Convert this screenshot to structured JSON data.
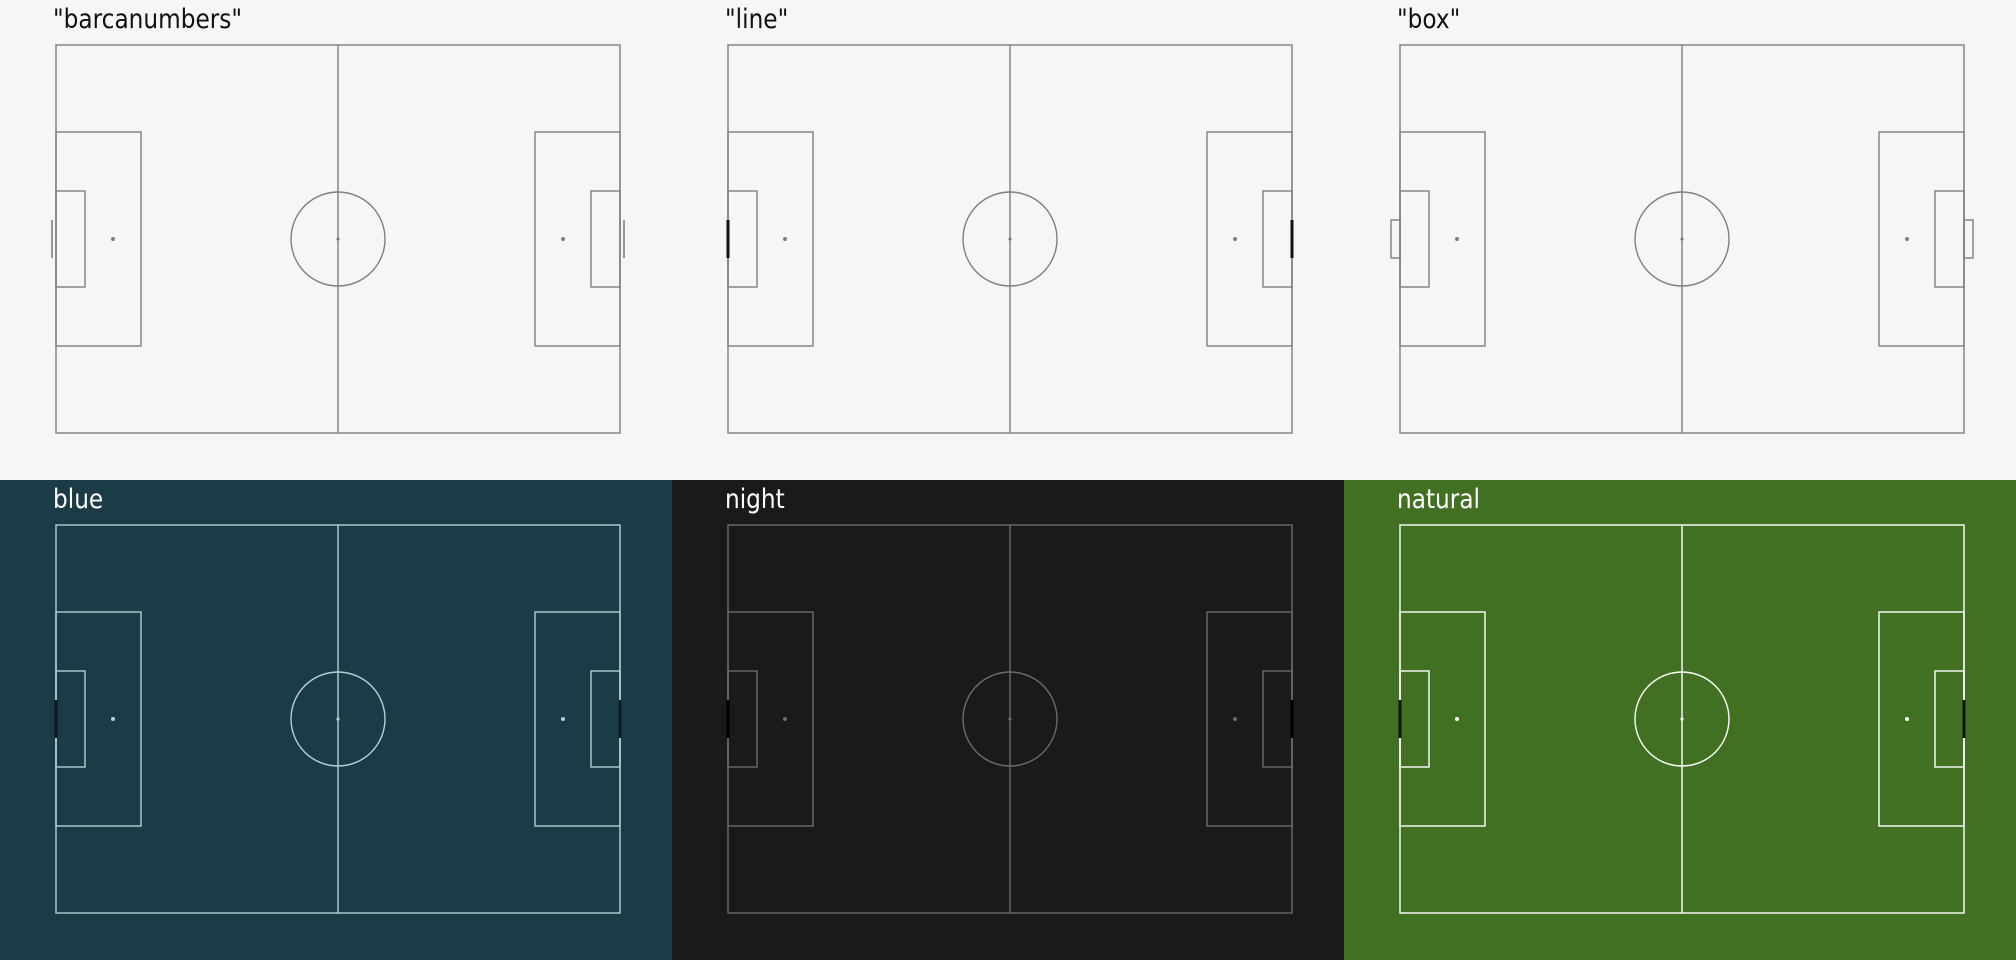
{
  "panels": [
    {
      "title": "\"barcanumbers\"",
      "goal_style": "barcanumbers",
      "background": "#f6f6f6",
      "line_color": "#7f7f7f",
      "text_color": "#111111",
      "goal_color": "#7f7f7f"
    },
    {
      "title": "\"line\"",
      "goal_style": "line",
      "background": "#f6f6f6",
      "line_color": "#7f7f7f",
      "text_color": "#111111",
      "goal_color": "#111111"
    },
    {
      "title": "\"box\"",
      "goal_style": "box",
      "background": "#f6f6f6",
      "line_color": "#7f7f7f",
      "text_color": "#111111",
      "goal_color": "#7f7f7f"
    },
    {
      "title": "blue",
      "goal_style": "line",
      "background": "#1b3b46",
      "line_color": "#b8ced4",
      "text_color": "#ffffff",
      "goal_color": "#0d1c21"
    },
    {
      "title": "night",
      "goal_style": "line",
      "background": "#1a1a1a",
      "line_color": "#6b6b6b",
      "text_color": "#ffffff",
      "goal_color": "#000000"
    },
    {
      "title": "natural",
      "goal_style": "line",
      "background": "#427022",
      "line_color": "#ffffff",
      "text_color": "#ffffff",
      "goal_color": "#111111"
    }
  ]
}
